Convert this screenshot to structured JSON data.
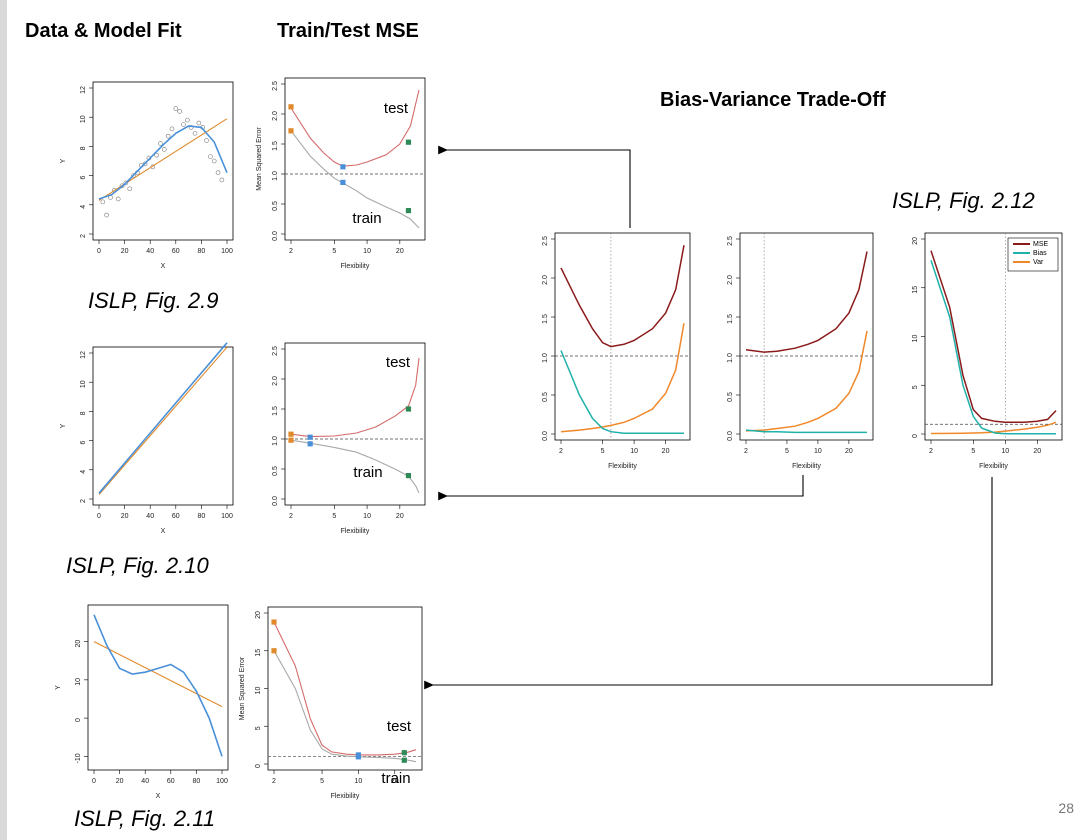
{
  "slide": {
    "title_left": "Data & Model Fit",
    "title_mid": "Train/Test MSE",
    "title_right": "Bias-Variance Trade-Off",
    "page_number": "28"
  },
  "captions": [
    "ISLP, Fig. 2.9",
    "ISLP, Fig. 2.10",
    "ISLP, Fig. 2.11",
    "ISLP, Fig. 2.12"
  ],
  "labels": {
    "test": "test",
    "train": "train",
    "x": "X",
    "y": "Y",
    "flex": "Flexibility",
    "mse_axis": "Mean Squared Error"
  },
  "legend": {
    "mse": "MSE",
    "bias": "Bias",
    "var": "Var"
  },
  "colors": {
    "orange": "#e08a2c",
    "blue": "#4a90d9",
    "green": "#2e8b57",
    "test": "#d46a6a",
    "train": "#a9a9a9",
    "mse": "#8b1a1a",
    "bias": "#20b2aa",
    "var": "#f0882a"
  },
  "chart_data": [
    {
      "type": "scatter",
      "name": "fig2.9-fit",
      "xlabel": "X",
      "ylabel": "Y",
      "xlim": [
        0,
        100
      ],
      "ylim": [
        2,
        12
      ],
      "xticks": [
        "0",
        "20",
        "40",
        "60",
        "80",
        "100"
      ],
      "yticks": [
        "2",
        "4",
        "6",
        "8",
        "10",
        "12"
      ],
      "points": [
        [
          3,
          4.2
        ],
        [
          6,
          3.3
        ],
        [
          9,
          4.5
        ],
        [
          12,
          5
        ],
        [
          15,
          4.4
        ],
        [
          18,
          5.3
        ],
        [
          21,
          5.5
        ],
        [
          24,
          5.1
        ],
        [
          27,
          6
        ],
        [
          30,
          6.2
        ],
        [
          33,
          6.7
        ],
        [
          36,
          6.8
        ],
        [
          39,
          7.2
        ],
        [
          42,
          6.6
        ],
        [
          45,
          7.4
        ],
        [
          48,
          8.2
        ],
        [
          51,
          7.8
        ],
        [
          54,
          8.7
        ],
        [
          57,
          9.2
        ],
        [
          60,
          10.6
        ],
        [
          63,
          10.4
        ],
        [
          66,
          9.5
        ],
        [
          69,
          9.8
        ],
        [
          72,
          9.3
        ],
        [
          75,
          8.9
        ],
        [
          78,
          9.6
        ],
        [
          81,
          9.3
        ],
        [
          84,
          8.4
        ],
        [
          87,
          7.3
        ],
        [
          90,
          7
        ],
        [
          93,
          6.2
        ],
        [
          96,
          5.7
        ]
      ],
      "series": [
        {
          "color": "orange",
          "x": [
            0,
            100
          ],
          "y": [
            4.3,
            9.9
          ]
        },
        {
          "color": "blue",
          "x": [
            0,
            10,
            20,
            30,
            40,
            50,
            60,
            70,
            80,
            90,
            100
          ],
          "y": [
            4.4,
            4.7,
            5.4,
            6.3,
            7.2,
            8.1,
            8.9,
            9.4,
            9.3,
            8.3,
            6.2
          ]
        }
      ]
    },
    {
      "type": "line",
      "name": "fig2.9-mse",
      "xlabel": "Flexibility",
      "ylabel": "Mean Squared Error",
      "ylim": [
        0,
        2.5
      ],
      "xticks": [
        "2",
        "5",
        "10",
        "20"
      ],
      "yticks": [
        "0.0",
        "0.5",
        "1.0",
        "1.5",
        "2.0",
        "2.5"
      ],
      "dashed_y": 1.0,
      "test": {
        "x": [
          2,
          3,
          4,
          5,
          6,
          8,
          10,
          15,
          20,
          25,
          30
        ],
        "y": [
          2.1,
          1.6,
          1.35,
          1.2,
          1.13,
          1.15,
          1.2,
          1.32,
          1.5,
          1.8,
          2.4
        ]
      },
      "train": {
        "x": [
          2,
          3,
          4,
          5,
          6,
          8,
          10,
          15,
          20,
          25,
          30
        ],
        "y": [
          1.72,
          1.3,
          1.08,
          0.93,
          0.85,
          0.72,
          0.6,
          0.45,
          0.35,
          0.25,
          0.1
        ]
      },
      "markers": [
        {
          "color": "orange",
          "x": 2,
          "y": 2.12
        },
        {
          "color": "orange",
          "x": 2,
          "y": 1.72
        },
        {
          "color": "blue",
          "x": 6,
          "y": 1.12
        },
        {
          "color": "blue",
          "x": 6,
          "y": 0.86
        },
        {
          "color": "green",
          "x": 24,
          "y": 1.53
        },
        {
          "color": "green",
          "x": 24,
          "y": 0.39
        }
      ]
    },
    {
      "type": "scatter",
      "name": "fig2.10-fit",
      "xlabel": "X",
      "ylabel": "Y",
      "xlim": [
        0,
        100
      ],
      "ylim": [
        2,
        12
      ],
      "xticks": [
        "0",
        "20",
        "40",
        "60",
        "80",
        "100"
      ],
      "yticks": [
        "2",
        "4",
        "6",
        "8",
        "10",
        "12"
      ],
      "series": [
        {
          "color": "orange",
          "x": [
            0,
            100
          ],
          "y": [
            2.3,
            12.4
          ]
        },
        {
          "color": "blue",
          "x": [
            0,
            100
          ],
          "y": [
            2.4,
            12.7
          ]
        }
      ]
    },
    {
      "type": "line",
      "name": "fig2.10-mse",
      "xlabel": "Flexibility",
      "ylim": [
        0,
        2.5
      ],
      "xticks": [
        "2",
        "5",
        "10",
        "20"
      ],
      "yticks": [
        "0.0",
        "0.5",
        "1.0",
        "1.5",
        "2.0",
        "2.5"
      ],
      "dashed_y": 1.0,
      "test": {
        "x": [
          2,
          3,
          5,
          8,
          12,
          18,
          24,
          28,
          30
        ],
        "y": [
          1.08,
          1.04,
          1.05,
          1.1,
          1.2,
          1.38,
          1.55,
          1.9,
          2.35
        ]
      },
      "train": {
        "x": [
          2,
          3,
          5,
          8,
          12,
          18,
          24,
          28,
          30
        ],
        "y": [
          0.98,
          0.93,
          0.86,
          0.78,
          0.65,
          0.5,
          0.38,
          0.22,
          0.1
        ]
      },
      "markers": [
        {
          "color": "orange",
          "x": 2,
          "y": 1.08
        },
        {
          "color": "orange",
          "x": 2,
          "y": 0.98
        },
        {
          "color": "blue",
          "x": 3,
          "y": 1.03
        },
        {
          "color": "blue",
          "x": 3,
          "y": 0.92
        },
        {
          "color": "green",
          "x": 24,
          "y": 1.5
        },
        {
          "color": "green",
          "x": 24,
          "y": 0.39
        }
      ]
    },
    {
      "type": "scatter",
      "name": "fig2.11-fit",
      "xlabel": "X",
      "ylabel": "Y",
      "xlim": [
        0,
        100
      ],
      "ylim": [
        -12,
        28
      ],
      "xticks": [
        "0",
        "20",
        "40",
        "60",
        "80",
        "100"
      ],
      "yticks": [
        "-10",
        "0",
        "10",
        "20"
      ],
      "series": [
        {
          "color": "orange",
          "x": [
            0,
            100
          ],
          "y": [
            20,
            3
          ]
        },
        {
          "color": "blue",
          "x": [
            0,
            10,
            20,
            30,
            40,
            50,
            60,
            70,
            80,
            90,
            100
          ],
          "y": [
            27,
            19,
            13,
            11.5,
            12,
            13,
            14,
            12,
            7,
            0,
            -10
          ]
        }
      ]
    },
    {
      "type": "line",
      "name": "fig2.11-mse",
      "xlabel": "Flexibility",
      "ylabel": "Mean Squared Error",
      "ylim": [
        0,
        20
      ],
      "xticks": [
        "2",
        "5",
        "10",
        "20"
      ],
      "yticks": [
        "0",
        "5",
        "10",
        "15",
        "20"
      ],
      "dashed_y": 1.0,
      "test": {
        "x": [
          2,
          3,
          4,
          5,
          6,
          8,
          10,
          15,
          20,
          25,
          30
        ],
        "y": [
          18.8,
          13,
          6,
          2.5,
          1.6,
          1.3,
          1.2,
          1.2,
          1.3,
          1.5,
          1.9
        ]
      },
      "train": {
        "x": [
          2,
          3,
          4,
          5,
          6,
          8,
          10,
          15,
          20,
          25,
          30
        ],
        "y": [
          15,
          10,
          4.5,
          2,
          1.3,
          1.05,
          0.95,
          0.85,
          0.75,
          0.55,
          0.3
        ]
      },
      "markers": [
        {
          "color": "orange",
          "x": 2,
          "y": 18.8
        },
        {
          "color": "orange",
          "x": 2,
          "y": 15
        },
        {
          "color": "blue",
          "x": 10,
          "y": 1.2
        },
        {
          "color": "blue",
          "x": 10,
          "y": 0.95
        },
        {
          "color": "green",
          "x": 24,
          "y": 1.5
        },
        {
          "color": "green",
          "x": 24,
          "y": 0.5
        }
      ]
    },
    {
      "type": "line",
      "name": "fig2.12-a",
      "xlabel": "Flexibility",
      "ylim": [
        0,
        2.5
      ],
      "xticks": [
        "2",
        "5",
        "10",
        "20"
      ],
      "yticks": [
        "0.0",
        "0.5",
        "1.0",
        "1.5",
        "2.0",
        "2.5"
      ],
      "dashed_y": 1.0,
      "vline_x": 6,
      "mse": {
        "x": [
          2,
          3,
          4,
          5,
          6,
          8,
          10,
          15,
          20,
          25,
          30
        ],
        "y": [
          2.13,
          1.65,
          1.35,
          1.17,
          1.12,
          1.15,
          1.2,
          1.35,
          1.55,
          1.85,
          2.42
        ]
      },
      "bias": {
        "x": [
          2,
          3,
          4,
          5,
          6,
          8,
          10,
          15,
          20,
          25,
          30
        ],
        "y": [
          1.07,
          0.5,
          0.2,
          0.07,
          0.03,
          0.01,
          0.01,
          0.01,
          0.01,
          0.01,
          0.01
        ]
      },
      "var": {
        "x": [
          2,
          3,
          4,
          5,
          6,
          8,
          10,
          15,
          20,
          25,
          30
        ],
        "y": [
          0.03,
          0.05,
          0.07,
          0.09,
          0.11,
          0.15,
          0.2,
          0.32,
          0.52,
          0.82,
          1.42
        ]
      }
    },
    {
      "type": "line",
      "name": "fig2.12-b",
      "xlabel": "Flexibility",
      "ylim": [
        0,
        2.5
      ],
      "xticks": [
        "2",
        "5",
        "10",
        "20"
      ],
      "yticks": [
        "0.0",
        "0.5",
        "1.0",
        "1.5",
        "2.0",
        "2.5"
      ],
      "dashed_y": 1.0,
      "vline_x": 3,
      "mse": {
        "x": [
          2,
          3,
          4,
          6,
          8,
          10,
          15,
          20,
          25,
          30
        ],
        "y": [
          1.08,
          1.05,
          1.06,
          1.1,
          1.15,
          1.2,
          1.35,
          1.55,
          1.85,
          2.34
        ]
      },
      "bias": {
        "x": [
          2,
          3,
          4,
          6,
          8,
          10,
          15,
          20,
          25,
          30
        ],
        "y": [
          0.05,
          0.03,
          0.03,
          0.02,
          0.02,
          0.02,
          0.02,
          0.02,
          0.02,
          0.02
        ]
      },
      "var": {
        "x": [
          2,
          3,
          4,
          6,
          8,
          10,
          15,
          20,
          25,
          30
        ],
        "y": [
          0.04,
          0.05,
          0.07,
          0.1,
          0.15,
          0.2,
          0.33,
          0.52,
          0.8,
          1.32
        ]
      }
    },
    {
      "type": "line",
      "name": "fig2.12-c",
      "xlabel": "Flexibility",
      "ylim": [
        0,
        20
      ],
      "xticks": [
        "2",
        "5",
        "10",
        "20"
      ],
      "yticks": [
        "0",
        "5",
        "10",
        "15",
        "20"
      ],
      "dashed_y": 1.0,
      "vline_x": 10,
      "mse": {
        "x": [
          2,
          3,
          4,
          5,
          6,
          8,
          10,
          15,
          20,
          25,
          30
        ],
        "y": [
          18.8,
          13,
          6,
          2.5,
          1.6,
          1.3,
          1.2,
          1.2,
          1.3,
          1.5,
          2.4
        ]
      },
      "bias": {
        "x": [
          2,
          3,
          4,
          5,
          6,
          8,
          10,
          15,
          20,
          25,
          30
        ],
        "y": [
          17.8,
          12,
          5,
          1.8,
          0.6,
          0.1,
          0.02,
          0.02,
          0.02,
          0.02,
          0.02
        ]
      },
      "var": {
        "x": [
          2,
          3,
          4,
          5,
          6,
          8,
          10,
          15,
          20,
          25,
          30
        ],
        "y": [
          0.05,
          0.06,
          0.08,
          0.1,
          0.12,
          0.2,
          0.3,
          0.5,
          0.7,
          0.9,
          1.2
        ]
      }
    }
  ]
}
